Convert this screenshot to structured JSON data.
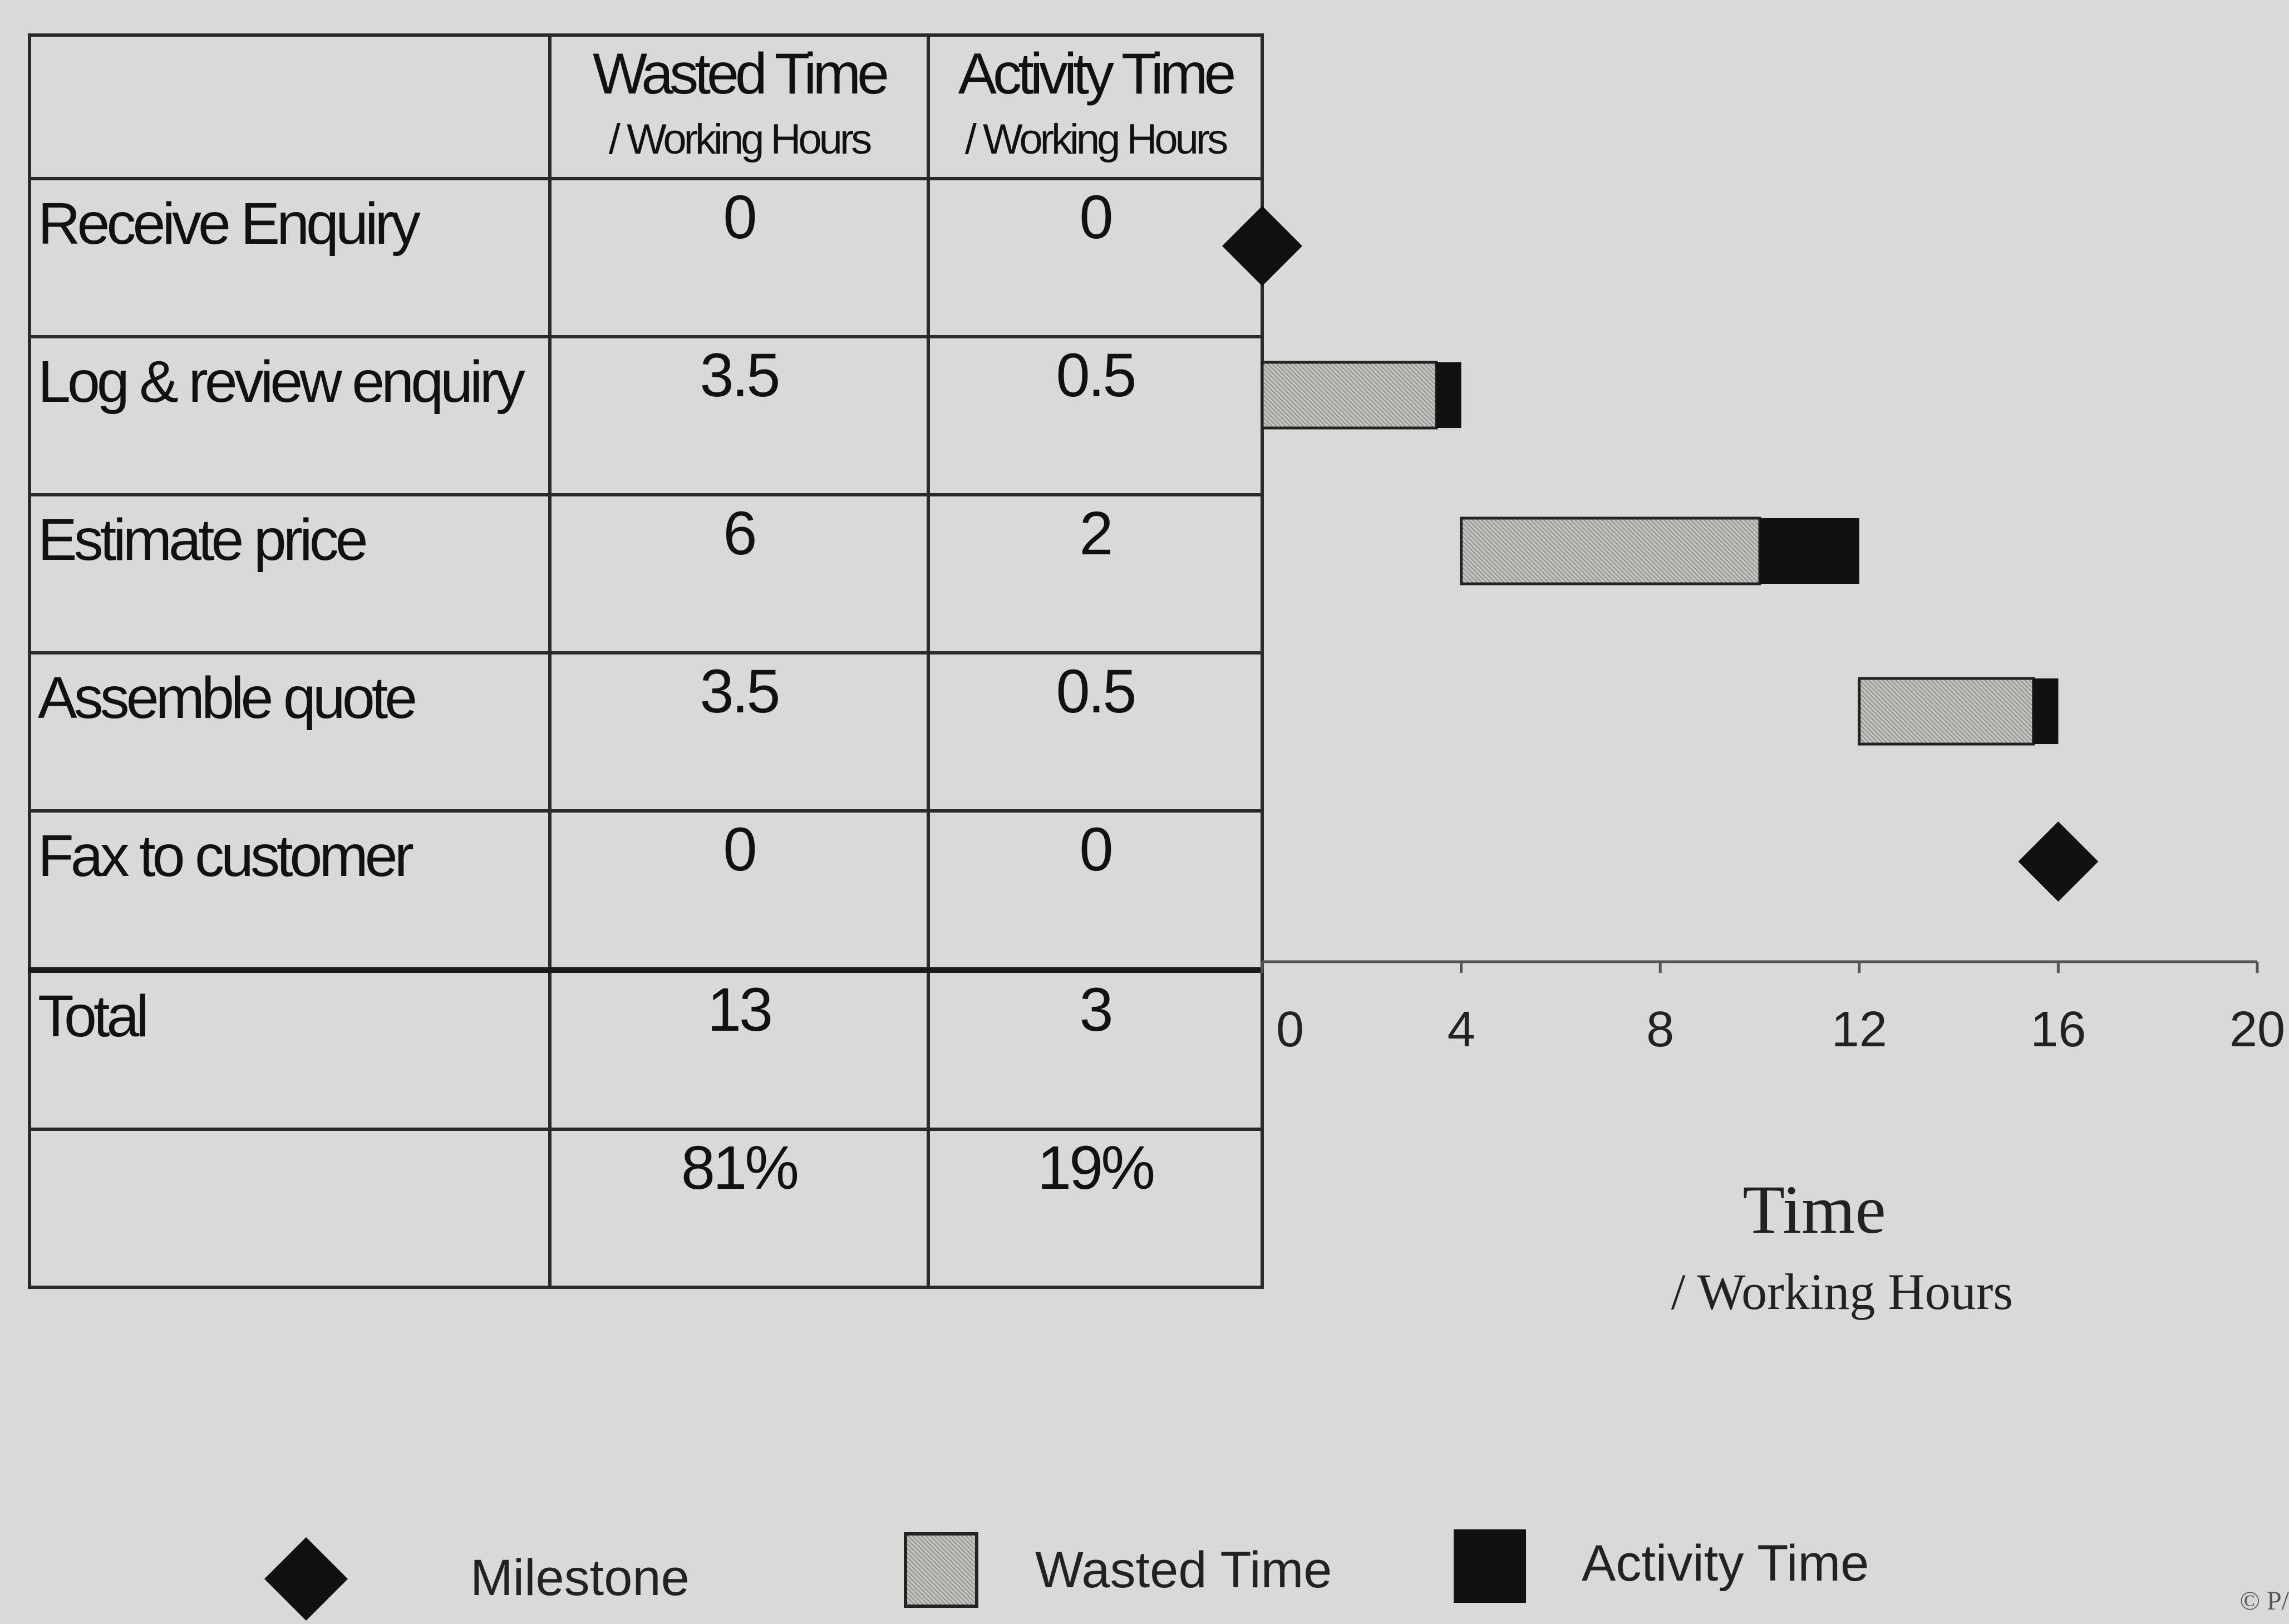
{
  "table": {
    "header": {
      "wasted_title": "Wasted Time",
      "wasted_sub": "/ Working Hours",
      "activity_title": "Activity Time",
      "activity_sub": "/ Working Hours"
    },
    "rows": [
      {
        "label": "Receive Enquiry",
        "wasted": "0",
        "activity": "0"
      },
      {
        "label": "Log & review enquiry",
        "wasted": "3.5",
        "activity": "0.5"
      },
      {
        "label": "Estimate price",
        "wasted": "6",
        "activity": "2"
      },
      {
        "label": "Assemble quote",
        "wasted": "3.5",
        "activity": "0.5"
      },
      {
        "label": "Fax to customer",
        "wasted": "0",
        "activity": "0"
      }
    ],
    "total": {
      "label": "Total",
      "wasted": "13",
      "activity": "3"
    },
    "percent": {
      "label": "",
      "wasted": "81%",
      "activity": "19%"
    }
  },
  "chart_data": {
    "type": "bar",
    "orientation": "horizontal-gantt",
    "categories": [
      "Receive Enquiry",
      "Log & review enquiry",
      "Estimate price",
      "Assemble quote",
      "Fax to customer"
    ],
    "tasks": [
      {
        "name": "Receive Enquiry",
        "kind": "milestone",
        "at": 0
      },
      {
        "name": "Log & review enquiry",
        "kind": "task",
        "start": 0,
        "wasted": 3.5,
        "activity": 0.5
      },
      {
        "name": "Estimate price",
        "kind": "task",
        "start": 4,
        "wasted": 6,
        "activity": 2
      },
      {
        "name": "Assemble quote",
        "kind": "task",
        "start": 12,
        "wasted": 3.5,
        "activity": 0.5
      },
      {
        "name": "Fax to customer",
        "kind": "milestone",
        "at": 16
      }
    ],
    "series": [
      {
        "name": "Wasted Time",
        "values": [
          0,
          3.5,
          6,
          3.5,
          0
        ]
      },
      {
        "name": "Activity Time",
        "values": [
          0,
          0.5,
          2,
          0.5,
          0
        ]
      }
    ],
    "xlim": [
      0,
      20
    ],
    "xticks": [
      0,
      4,
      8,
      12,
      16,
      20
    ],
    "xlabel": "Time",
    "xlabel_sub": "/ Working Hours",
    "legend": {
      "placement": "bottom",
      "items": [
        "Milestone",
        "Wasted Time",
        "Activity Time"
      ]
    },
    "grid": false,
    "colors": {
      "wasted": "#b9b9b5",
      "activity": "#111111",
      "milestone": "#111111"
    }
  },
  "corner_mark": "© P/"
}
